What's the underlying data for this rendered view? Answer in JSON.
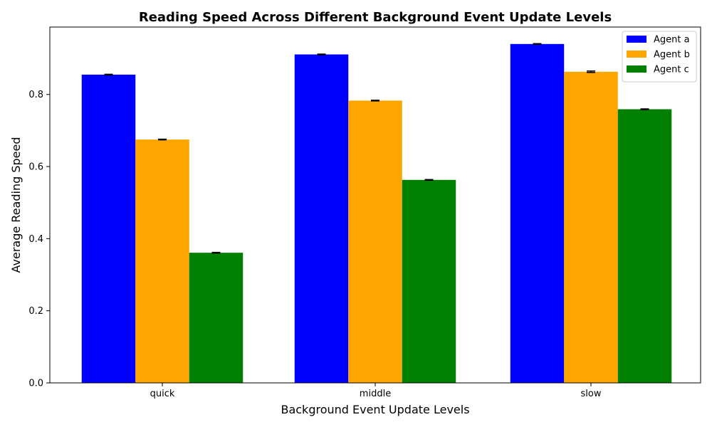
{
  "chart_data": {
    "type": "bar",
    "title": "Reading Speed Across Different Background Event Update Levels",
    "xlabel": "Background Event Update Levels",
    "ylabel": "Average Reading Speed",
    "ylim": [
      0,
      0.987
    ],
    "yticks": [
      0.0,
      0.2,
      0.4,
      0.6,
      0.8
    ],
    "ytick_labels": [
      "0.0",
      "0.2",
      "0.4",
      "0.6",
      "0.8"
    ],
    "categories": [
      "quick",
      "middle",
      "slow"
    ],
    "series": [
      {
        "name": "Agent a",
        "color": "#0000ff",
        "values": [
          0.855,
          0.911,
          0.94
        ],
        "errors": [
          0.001,
          0.001,
          0.001
        ]
      },
      {
        "name": "Agent b",
        "color": "#ffa500",
        "values": [
          0.675,
          0.783,
          0.863
        ],
        "errors": [
          0.001,
          0.001,
          0.002
        ]
      },
      {
        "name": "Agent c",
        "color": "#008000",
        "values": [
          0.361,
          0.563,
          0.759
        ],
        "errors": [
          0.001,
          0.001,
          0.001
        ]
      }
    ],
    "legend_position": "top-right",
    "grid": false
  }
}
